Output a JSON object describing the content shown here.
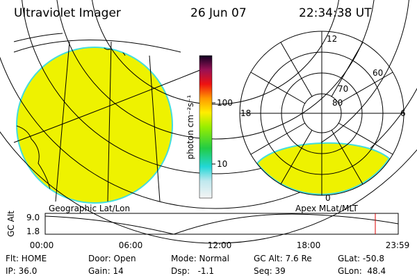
{
  "header": {
    "title": "Ultraviolet Imager",
    "date": "26 Jun 07",
    "time": "22:34:38 UT"
  },
  "colorbar": {
    "label": "photon cm⁻²s⁻¹",
    "ticks": [
      "100",
      "10"
    ]
  },
  "polar": {
    "mlt_labels": [
      "12",
      "18",
      "6",
      "0"
    ],
    "mlat_labels": [
      "80",
      "70",
      "60"
    ]
  },
  "panel_labels": {
    "left": "Geographic Lat/Lon",
    "right": "Apex MLat/MLT"
  },
  "timeline": {
    "y_label": "GC Alt",
    "y_ticks": [
      "9.0",
      "1.8"
    ],
    "x_ticks": [
      "00:00",
      "06:00",
      "12:00",
      "18:00",
      "23:59"
    ]
  },
  "status": {
    "rows": [
      [
        "Flt: HOME",
        "Door: Open",
        "Mode: Normal",
        "GC Alt: 7.6 Re",
        "GLat: -50.8"
      ],
      [
        "IP: 36.0",
        "Gain: 14",
        "Dsp:   -1.1",
        "Seq: 39",
        "GLon:  48.4"
      ]
    ]
  }
}
